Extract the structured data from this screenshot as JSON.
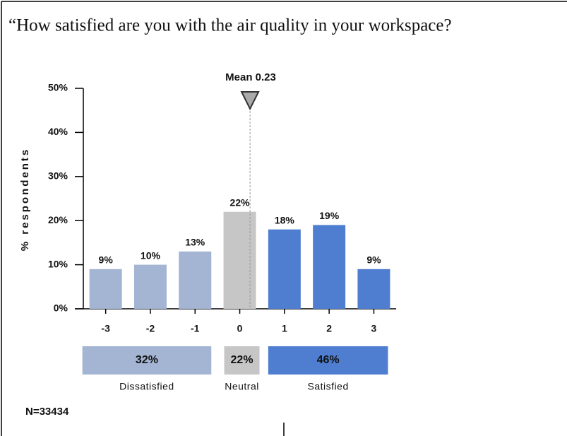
{
  "question": "“How satisfied are you with the air quality in your workspace?",
  "chart_data": {
    "type": "bar",
    "y_label": "% respondents",
    "categories": [
      "-3",
      "-2",
      "-1",
      "0",
      "1",
      "2",
      "3"
    ],
    "values": [
      9,
      10,
      13,
      22,
      18,
      19,
      9
    ],
    "value_labels": [
      "9%",
      "10%",
      "13%",
      "22%",
      "18%",
      "19%",
      "9%"
    ],
    "colors": [
      "#a3b5d3",
      "#a3b5d3",
      "#a3b5d3",
      "#c6c6c6",
      "#4f7ed1",
      "#4f7ed1",
      "#4f7ed1"
    ],
    "ylim": [
      0,
      50
    ],
    "yticks": [
      {
        "value": 0,
        "label": "0%"
      },
      {
        "value": 10,
        "label": "10%"
      },
      {
        "value": 20,
        "label": "20%"
      },
      {
        "value": 30,
        "label": "30%"
      },
      {
        "value": 40,
        "label": "40%"
      },
      {
        "value": 50,
        "label": "50%"
      }
    ],
    "mean": 0.23,
    "mean_label": "Mean 0.23",
    "groups": [
      {
        "name": "Dissatisfied",
        "value": 32,
        "value_label": "32%",
        "color": "#a3b5d3"
      },
      {
        "name": "Neutral",
        "value": 22,
        "value_label": "22%",
        "color": "#c6c6c6"
      },
      {
        "name": "Satisfied",
        "value": 46,
        "value_label": "46%",
        "color": "#4f7ed1"
      }
    ],
    "n_label": "N=33434"
  }
}
